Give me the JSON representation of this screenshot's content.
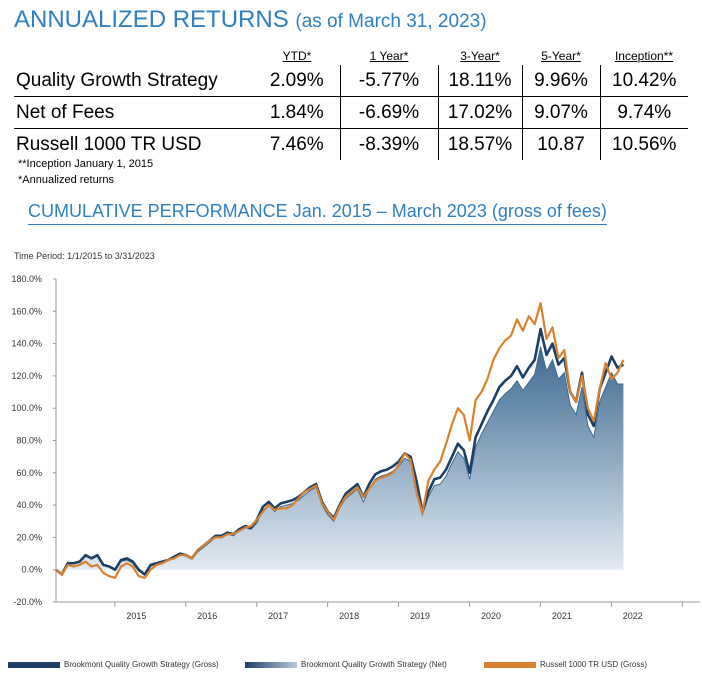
{
  "header": {
    "title": "ANNUALIZED RETURNS",
    "subtitle": "(as of March 31, 2023)"
  },
  "returns_table": {
    "columns": [
      "YTD*",
      "1 Year*",
      "3-Year*",
      "5-Year*",
      "Inception**"
    ],
    "rows": [
      {
        "name": "Quality Growth Strategy",
        "values": [
          "2.09%",
          "-5.77%",
          "18.11%",
          "9.96%",
          "10.42%"
        ]
      },
      {
        "name": "Net of Fees",
        "values": [
          "1.84%",
          "-6.69%",
          "17.02%",
          "9.07%",
          "9.74%"
        ]
      },
      {
        "name": "Russell 1000 TR USD",
        "values": [
          "7.46%",
          "-8.39%",
          "18.57%",
          "10.87",
          "10.56%"
        ]
      }
    ]
  },
  "footnotes": {
    "inception": "**Inception January 1, 2015",
    "annualized": "*Annualized returns"
  },
  "chart_header": {
    "title": "CUMULATIVE PERFORMANCE Jan. 2015 – March 2023 (gross of fees)",
    "time_period": "Time Period: 1/1/2015 to 3/31/2023"
  },
  "legend": {
    "gross": "Brookmont Quality Growth Strategy (Gross)",
    "net": "Brookmont Quality Growth Strategy (Net)",
    "russell": "Russell 1000 TR USD (Gross)"
  },
  "colors": {
    "gross": "#1c3f66",
    "net_top": "#3d6a91",
    "net_bottom": "#e6edf4",
    "russell": "#d9812f",
    "title_blue": "#2f7fc1"
  },
  "chart_data": {
    "type": "area",
    "x_start": 2014.17,
    "x_step": 0.08333,
    "xticks": [
      2015,
      2016,
      2017,
      2018,
      2019,
      2020,
      2021,
      2022
    ],
    "xtick_labels": [
      "2015",
      "2016",
      "2017",
      "2018",
      "2019",
      "2020",
      "2021",
      "2022"
    ],
    "ylim": [
      -20,
      180
    ],
    "yticks": [
      -20,
      0,
      20,
      40,
      60,
      80,
      100,
      120,
      140,
      160,
      180
    ],
    "ytick_labels": [
      "-20.0%",
      "0.0%",
      "20.0%",
      "40.0%",
      "60.0%",
      "80.0%",
      "100.0%",
      "120.0%",
      "140.0%",
      "160.0%",
      "180.0%"
    ],
    "grid": false,
    "legend_position": "bottom",
    "series": [
      {
        "name": "Brookmont Quality Growth Strategy (Gross)",
        "kind": "line",
        "values": [
          0,
          -3,
          4,
          4,
          5,
          9,
          7,
          9,
          3,
          2,
          0,
          6,
          7,
          5,
          0,
          -3,
          3,
          4,
          5,
          6,
          8,
          10,
          9,
          7,
          12,
          15,
          18,
          21,
          21,
          23,
          22,
          25,
          27,
          26,
          31,
          39,
          42,
          38,
          41,
          42,
          43,
          45,
          48,
          51,
          53,
          42,
          36,
          32,
          40,
          47,
          50,
          53,
          45,
          53,
          59,
          61,
          62,
          64,
          67,
          72,
          70,
          55,
          36,
          48,
          56,
          57,
          62,
          70,
          78,
          74,
          60,
          82,
          90,
          98,
          105,
          113,
          117,
          120,
          126,
          119,
          125,
          130,
          149,
          133,
          140,
          127,
          131,
          110,
          104,
          122,
          96,
          89,
          112,
          122,
          132,
          125,
          127
        ]
      },
      {
        "name": "Brookmont Quality Growth Strategy (Net)",
        "kind": "area",
        "values": [
          0,
          -3,
          4,
          4,
          5,
          9,
          7,
          9,
          3,
          2,
          0,
          5,
          6,
          4,
          -1,
          -3,
          2,
          4,
          5,
          6,
          8,
          10,
          9,
          7,
          11,
          14,
          17,
          20,
          20,
          22,
          21,
          24,
          26,
          25,
          29,
          37,
          40,
          36,
          39,
          40,
          41,
          43,
          46,
          49,
          51,
          40,
          34,
          30,
          38,
          44,
          47,
          50,
          42,
          50,
          56,
          58,
          59,
          61,
          64,
          69,
          67,
          52,
          34,
          45,
          52,
          53,
          58,
          66,
          73,
          69,
          56,
          76,
          84,
          91,
          98,
          105,
          109,
          112,
          117,
          111,
          116,
          121,
          138,
          123,
          130,
          118,
          122,
          102,
          96,
          113,
          89,
          82,
          104,
          113,
          122,
          115,
          115
        ]
      },
      {
        "name": "Russell 1000 TR USD (Gross)",
        "kind": "line",
        "values": [
          0,
          -3,
          3,
          2,
          3,
          5,
          2,
          3,
          -2,
          -4,
          -5,
          2,
          4,
          2,
          -4,
          -5,
          0,
          3,
          4,
          6,
          7,
          9,
          9,
          7,
          12,
          15,
          18,
          20,
          20,
          22,
          22,
          24,
          26,
          27,
          31,
          36,
          40,
          37,
          38,
          38,
          40,
          44,
          48,
          50,
          52,
          41,
          36,
          31,
          39,
          45,
          48,
          51,
          45,
          50,
          55,
          57,
          58,
          60,
          65,
          72,
          68,
          48,
          35,
          55,
          62,
          67,
          78,
          90,
          100,
          96,
          80,
          105,
          110,
          118,
          130,
          137,
          142,
          145,
          155,
          148,
          157,
          152,
          165,
          143,
          150,
          131,
          136,
          110,
          104,
          120,
          100,
          92,
          112,
          128,
          118,
          122,
          130
        ]
      }
    ]
  }
}
